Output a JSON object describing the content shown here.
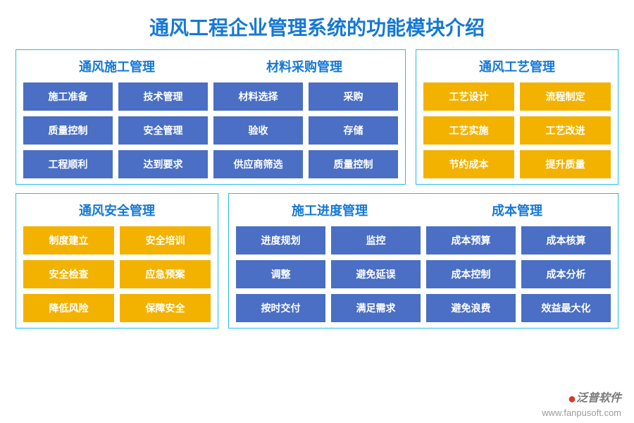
{
  "title": "通风工程企业管理系统的功能模块介绍",
  "colors": {
    "title": "#1578d6",
    "border": "#22bdf2",
    "header": "#1578d6",
    "blue": "#4a6fc4",
    "orange": "#f3b200",
    "cell_text": "#ffffff",
    "background": "#ffffff"
  },
  "layout": {
    "rows": [
      {
        "panels": [
          {
            "flex": 6,
            "cols": 4,
            "headers": [
              "通风施工管理",
              "材料采购管理"
            ],
            "color": "blue",
            "cells": [
              "施工准备",
              "技术管理",
              "材料选择",
              "采购",
              "质量控制",
              "安全管理",
              "验收",
              "存储",
              "工程顺利",
              "达到要求",
              "供应商筛选",
              "质量控制"
            ]
          },
          {
            "flex": 3,
            "cols": 2,
            "headers": [
              "通风工艺管理"
            ],
            "color": "orange",
            "cells": [
              "工艺设计",
              "流程制定",
              "工艺实施",
              "工艺改进",
              "节约成本",
              "提升质量"
            ]
          }
        ]
      },
      {
        "panels": [
          {
            "flex": 3,
            "cols": 2,
            "headers": [
              "通风安全管理"
            ],
            "color": "orange",
            "cells": [
              "制度建立",
              "安全培训",
              "安全检查",
              "应急预案",
              "降低风险",
              "保障安全"
            ]
          },
          {
            "flex": 6,
            "cols": 4,
            "headers": [
              "施工进度管理",
              "成本管理"
            ],
            "color": "blue",
            "cells": [
              "进度规划",
              "监控",
              "成本预算",
              "成本核算",
              "调整",
              "避免延误",
              "成本控制",
              "成本分析",
              "按时交付",
              "满足需求",
              "避免浪费",
              "效益最大化"
            ]
          }
        ]
      }
    ]
  },
  "watermark": {
    "brand": "泛普软件",
    "url": "www.fanpusoft.com"
  }
}
